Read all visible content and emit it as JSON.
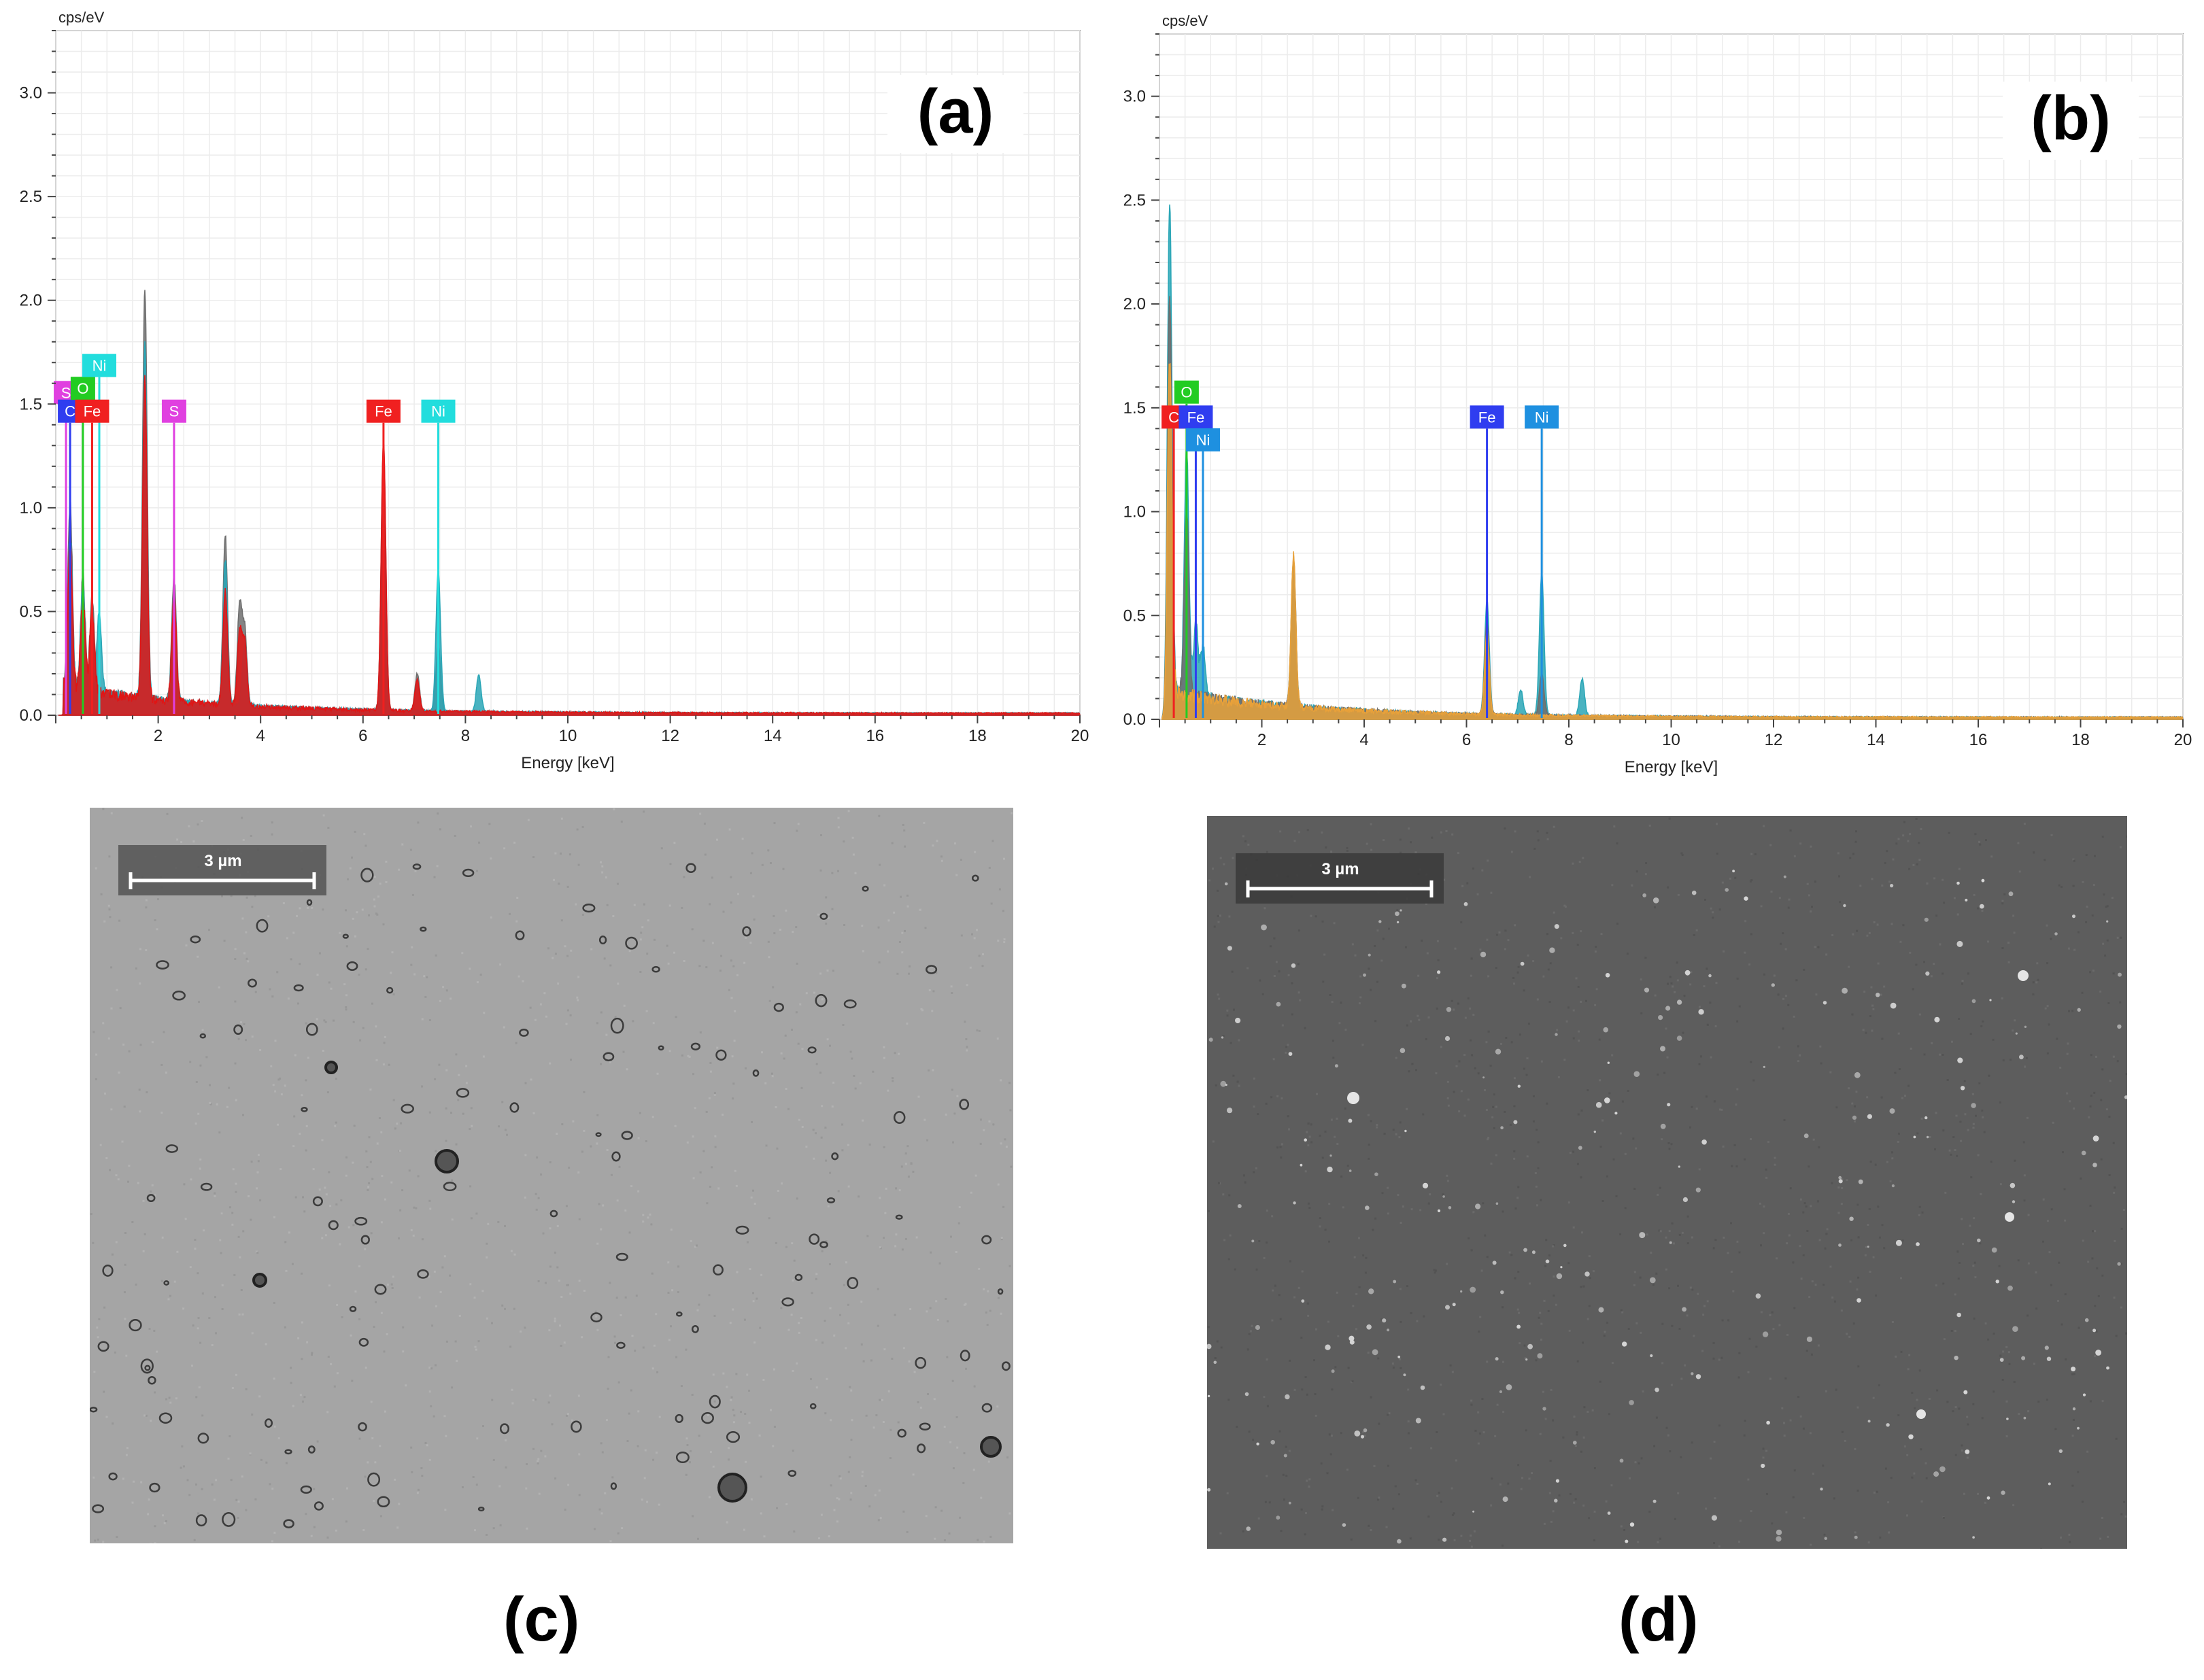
{
  "chart_data": [
    {
      "type": "line",
      "panel_label": "(a)",
      "ylabel": "cps/eV",
      "xlabel": "Energy [keV]",
      "xlim": [
        0,
        20
      ],
      "ylim": [
        0,
        3.3
      ],
      "xticks": [
        2,
        4,
        6,
        8,
        10,
        12,
        14,
        16,
        18,
        20
      ],
      "xtick_labels": [
        "2",
        "4",
        "6",
        "8",
        "10",
        "12",
        "14",
        "16",
        "18",
        "20"
      ],
      "yticks": [
        0.0,
        0.5,
        1.0,
        1.5,
        2.0,
        2.5,
        3.0
      ],
      "ytick_labels": [
        "0.0",
        "0.5",
        "1.0",
        "1.5",
        "2.0",
        "2.5",
        "3.0"
      ],
      "grid": true,
      "series": [
        {
          "name": "grey",
          "color": "#6e6e6e",
          "peaks": [
            [
              0.28,
              0.9
            ],
            [
              0.53,
              0.55
            ],
            [
              0.71,
              0.45
            ],
            [
              1.74,
              1.98
            ],
            [
              2.31,
              0.6
            ],
            [
              3.31,
              0.82
            ],
            [
              3.59,
              0.48
            ],
            [
              3.69,
              0.36
            ],
            [
              6.4,
              1.3
            ],
            [
              7.06,
              0.18
            ],
            [
              7.47,
              0.32
            ]
          ]
        },
        {
          "name": "teal",
          "color": "#2aa6b6",
          "peaks": [
            [
              0.28,
              0.75
            ],
            [
              0.53,
              0.5
            ],
            [
              0.85,
              0.4
            ],
            [
              1.74,
              1.7
            ],
            [
              2.31,
              0.5
            ],
            [
              3.31,
              0.7
            ],
            [
              3.69,
              0.3
            ],
            [
              6.4,
              1.2
            ],
            [
              7.47,
              0.68
            ],
            [
              8.26,
              0.18
            ]
          ]
        },
        {
          "name": "red",
          "color": "#e01515",
          "peaks": [
            [
              0.28,
              0.7
            ],
            [
              0.53,
              0.45
            ],
            [
              0.71,
              0.4
            ],
            [
              1.74,
              1.55
            ],
            [
              2.31,
              0.5
            ],
            [
              3.31,
              0.55
            ],
            [
              3.59,
              0.35
            ],
            [
              3.69,
              0.3
            ],
            [
              6.4,
              1.3
            ],
            [
              7.06,
              0.15
            ]
          ]
        }
      ],
      "element_markers": [
        {
          "label": "S",
          "energy": 0.2,
          "y": 1.5,
          "color": "#e040e0"
        },
        {
          "label": "C",
          "energy": 0.28,
          "y": 1.41,
          "color": "#2f3df0"
        },
        {
          "label": "O",
          "energy": 0.53,
          "y": 1.52,
          "color": "#22cc22"
        },
        {
          "label": "Ni",
          "energy": 0.85,
          "y": 1.63,
          "color": "#22dddd"
        },
        {
          "label": "Fe",
          "energy": 0.71,
          "y": 1.41,
          "color": "#f02020"
        },
        {
          "label": "S",
          "energy": 2.31,
          "y": 1.41,
          "color": "#e040e0"
        },
        {
          "label": "Fe",
          "energy": 6.4,
          "y": 1.41,
          "color": "#f02020"
        },
        {
          "label": "Ni",
          "energy": 7.47,
          "y": 1.41,
          "color": "#22dddd"
        }
      ]
    },
    {
      "type": "line",
      "panel_label": "(b)",
      "ylabel": "cps/eV",
      "xlabel": "Energy [keV]",
      "xlim": [
        0,
        20
      ],
      "ylim": [
        0,
        3.3
      ],
      "xticks": [
        2,
        4,
        6,
        8,
        10,
        12,
        14,
        16,
        18,
        20
      ],
      "xtick_labels": [
        "2",
        "4",
        "6",
        "8",
        "10",
        "12",
        "14",
        "16",
        "18",
        "20"
      ],
      "yticks": [
        0.0,
        0.5,
        1.0,
        1.5,
        2.0,
        2.5,
        3.0
      ],
      "ytick_labels": [
        "0.0",
        "0.5",
        "1.0",
        "1.5",
        "2.0",
        "2.5",
        "3.0"
      ],
      "grid": true,
      "series": [
        {
          "name": "teal",
          "color": "#2aa6b6",
          "peaks": [
            [
              0.2,
              2.36
            ],
            [
              0.53,
              1.2
            ],
            [
              0.71,
              0.35
            ],
            [
              0.85,
              0.25
            ],
            [
              2.62,
              0.7
            ],
            [
              6.4,
              0.55
            ],
            [
              7.06,
              0.12
            ],
            [
              7.47,
              0.68
            ],
            [
              8.26,
              0.18
            ]
          ]
        },
        {
          "name": "grey",
          "color": "#6e6e6e",
          "peaks": [
            [
              0.2,
              1.9
            ],
            [
              0.53,
              0.9
            ],
            [
              2.62,
              0.72
            ],
            [
              6.4,
              0.45
            ],
            [
              7.47,
              0.2
            ]
          ]
        },
        {
          "name": "orange",
          "color": "#e8a13a",
          "peaks": [
            [
              0.2,
              1.6
            ],
            [
              2.62,
              0.73
            ],
            [
              6.4,
              0.4
            ]
          ]
        }
      ],
      "element_markers": [
        {
          "label": "C",
          "energy": 0.28,
          "y": 1.4,
          "color": "#f02020"
        },
        {
          "label": "O",
          "energy": 0.53,
          "y": 1.52,
          "color": "#22cc22"
        },
        {
          "label": "Fe",
          "energy": 0.71,
          "y": 1.4,
          "color": "#2f3df0"
        },
        {
          "label": "Ni",
          "energy": 0.85,
          "y": 1.29,
          "color": "#1e90e0"
        },
        {
          "label": "Fe",
          "energy": 6.4,
          "y": 1.4,
          "color": "#2f3df0"
        },
        {
          "label": "Ni",
          "energy": 7.47,
          "y": 1.4,
          "color": "#1e90e0"
        }
      ]
    }
  ],
  "sem_images": [
    {
      "panel_label": "(c)",
      "scale_bar": "3 µm",
      "background": "#a5a5a5",
      "particle_color": "#3c3c3c"
    },
    {
      "panel_label": "(d)",
      "scale_bar": "3 µm",
      "background": "#5d5d5d",
      "particle_color": "#d8d8d8"
    }
  ]
}
